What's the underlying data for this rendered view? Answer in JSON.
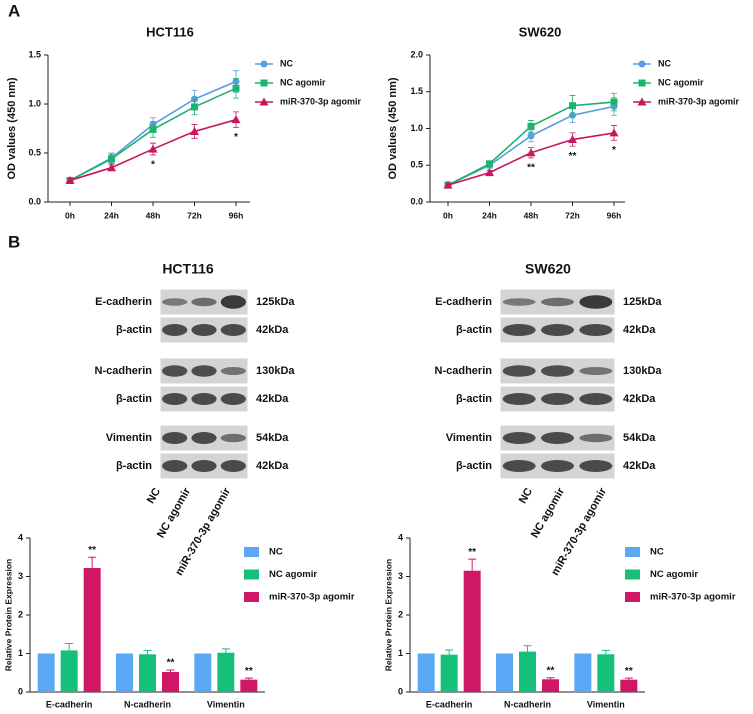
{
  "panel_labels": [
    "A",
    "B"
  ],
  "chart_data": [
    {
      "type": "line",
      "title": "HCT116",
      "y_label": "OD values (450 nm)",
      "categories": [
        "0h",
        "24h",
        "48h",
        "72h",
        "96h"
      ],
      "ylim": [
        0,
        1.5
      ],
      "yticks": [
        {
          "value": 0,
          "label": "0.0"
        },
        {
          "value": 0.5,
          "label": "0.5"
        },
        {
          "value": 1,
          "label": "1.0"
        },
        {
          "value": 1.5,
          "label": "1.5"
        }
      ],
      "series": [
        {
          "name": "NC",
          "color": "#5b9de0",
          "marker": "circle",
          "values": [
            0.22,
            0.45,
            0.79,
            1.05,
            1.23
          ],
          "errors": [
            0.02,
            0.05,
            0.07,
            0.09,
            0.11
          ]
        },
        {
          "name": "NC agomir",
          "color": "#1db36e",
          "marker": "square",
          "values": [
            0.22,
            0.44,
            0.74,
            0.97,
            1.16
          ],
          "errors": [
            0.02,
            0.05,
            0.08,
            0.08,
            0.1
          ]
        },
        {
          "name": "miR-370-3p agomir",
          "color": "#c8175e",
          "marker": "triangle",
          "values": [
            0.22,
            0.35,
            0.54,
            0.72,
            0.84
          ],
          "errors": [
            0.02,
            0.03,
            0.06,
            0.07,
            0.08
          ],
          "significance": [
            null,
            null,
            "*",
            null,
            "*"
          ]
        }
      ]
    },
    {
      "type": "line",
      "title": "SW620",
      "y_label": "OD values (450 nm)",
      "categories": [
        "0h",
        "24h",
        "48h",
        "72h",
        "96h"
      ],
      "ylim": [
        0,
        2
      ],
      "yticks": [
        {
          "value": 0,
          "label": "0.0"
        },
        {
          "value": 0.5,
          "label": "0.5"
        },
        {
          "value": 1,
          "label": "1.0"
        },
        {
          "value": 1.5,
          "label": "1.5"
        },
        {
          "value": 2,
          "label": "2.0"
        }
      ],
      "series": [
        {
          "name": "NC",
          "color": "#5b9de0",
          "marker": "circle",
          "values": [
            0.23,
            0.5,
            0.9,
            1.18,
            1.3
          ],
          "errors": [
            0.02,
            0.04,
            0.08,
            0.1,
            0.12
          ]
        },
        {
          "name": "NC agomir",
          "color": "#1db36e",
          "marker": "square",
          "values": [
            0.23,
            0.52,
            1.03,
            1.31,
            1.36
          ],
          "errors": [
            0.02,
            0.04,
            0.08,
            0.14,
            0.12
          ]
        },
        {
          "name": "miR-370-3p agomir",
          "color": "#c8175e",
          "marker": "triangle",
          "values": [
            0.23,
            0.4,
            0.67,
            0.85,
            0.94
          ],
          "errors": [
            0.02,
            0.03,
            0.07,
            0.09,
            0.1
          ],
          "significance": [
            null,
            null,
            "**",
            "**",
            "*"
          ]
        }
      ]
    },
    {
      "type": "bar",
      "y_label": "Relative Protein Expression",
      "categories": [
        "E-cadherin",
        "N-cadherin",
        "Vimentin"
      ],
      "ylim": [
        0,
        4
      ],
      "yticks": [
        0,
        1,
        2,
        3,
        4
      ],
      "series": [
        {
          "name": "NC",
          "color": "#5aa8f5",
          "values": [
            1,
            1,
            1
          ],
          "errors": [
            0,
            0,
            0
          ]
        },
        {
          "name": "NC agomir",
          "color": "#17c07a",
          "values": [
            1.08,
            0.98,
            1.02
          ],
          "errors": [
            0.18,
            0.1,
            0.1
          ]
        },
        {
          "name": "miR-370-3p agomir",
          "color": "#d01766",
          "values": [
            3.22,
            0.52,
            0.32
          ],
          "errors": [
            0.28,
            0.05,
            0.04
          ],
          "significance": [
            "**",
            "**",
            "**"
          ]
        }
      ]
    },
    {
      "type": "bar",
      "y_label": "Relative Protein Expression",
      "categories": [
        "E-cadherin",
        "N-cadherin",
        "Vimentin"
      ],
      "ylim": [
        0,
        4
      ],
      "yticks": [
        0,
        1,
        2,
        3,
        4
      ],
      "series": [
        {
          "name": "NC",
          "color": "#5aa8f5",
          "values": [
            1,
            1,
            1
          ],
          "errors": [
            0,
            0,
            0
          ]
        },
        {
          "name": "NC agomir",
          "color": "#17c07a",
          "values": [
            0.97,
            1.05,
            0.98
          ],
          "errors": [
            0.12,
            0.15,
            0.1
          ]
        },
        {
          "name": "miR-370-3p agomir",
          "color": "#d01766",
          "values": [
            3.15,
            0.33,
            0.32
          ],
          "errors": [
            0.3,
            0.04,
            0.04
          ],
          "significance": [
            "**",
            "**",
            "**"
          ]
        }
      ]
    }
  ],
  "blots": [
    {
      "title": "HCT116",
      "lanes": [
        "NC",
        "NC agomir",
        "miR-370-3p agomir"
      ],
      "rows": [
        {
          "protein": "E-cadherin",
          "size": "125kDa"
        },
        {
          "protein": "β-actin",
          "size": "42kDa"
        },
        {
          "protein": "N-cadherin",
          "size": "130kDa"
        },
        {
          "protein": "β-actin",
          "size": "42kDa"
        },
        {
          "protein": "Vimentin",
          "size": "54kDa"
        },
        {
          "protein": "β-actin",
          "size": "42kDa"
        }
      ]
    },
    {
      "title": "SW620",
      "lanes": [
        "NC",
        "NC agomir",
        "miR-370-3p agomir"
      ],
      "rows": [
        {
          "protein": "E-cadherin",
          "size": "125kDa"
        },
        {
          "protein": "β-actin",
          "size": "42kDa"
        },
        {
          "protein": "N-cadherin",
          "size": "130kDa"
        },
        {
          "protein": "β-actin",
          "size": "42kDa"
        },
        {
          "protein": "Vimentin",
          "size": "54kDa"
        },
        {
          "protein": "β-actin",
          "size": "42kDa"
        }
      ]
    }
  ]
}
